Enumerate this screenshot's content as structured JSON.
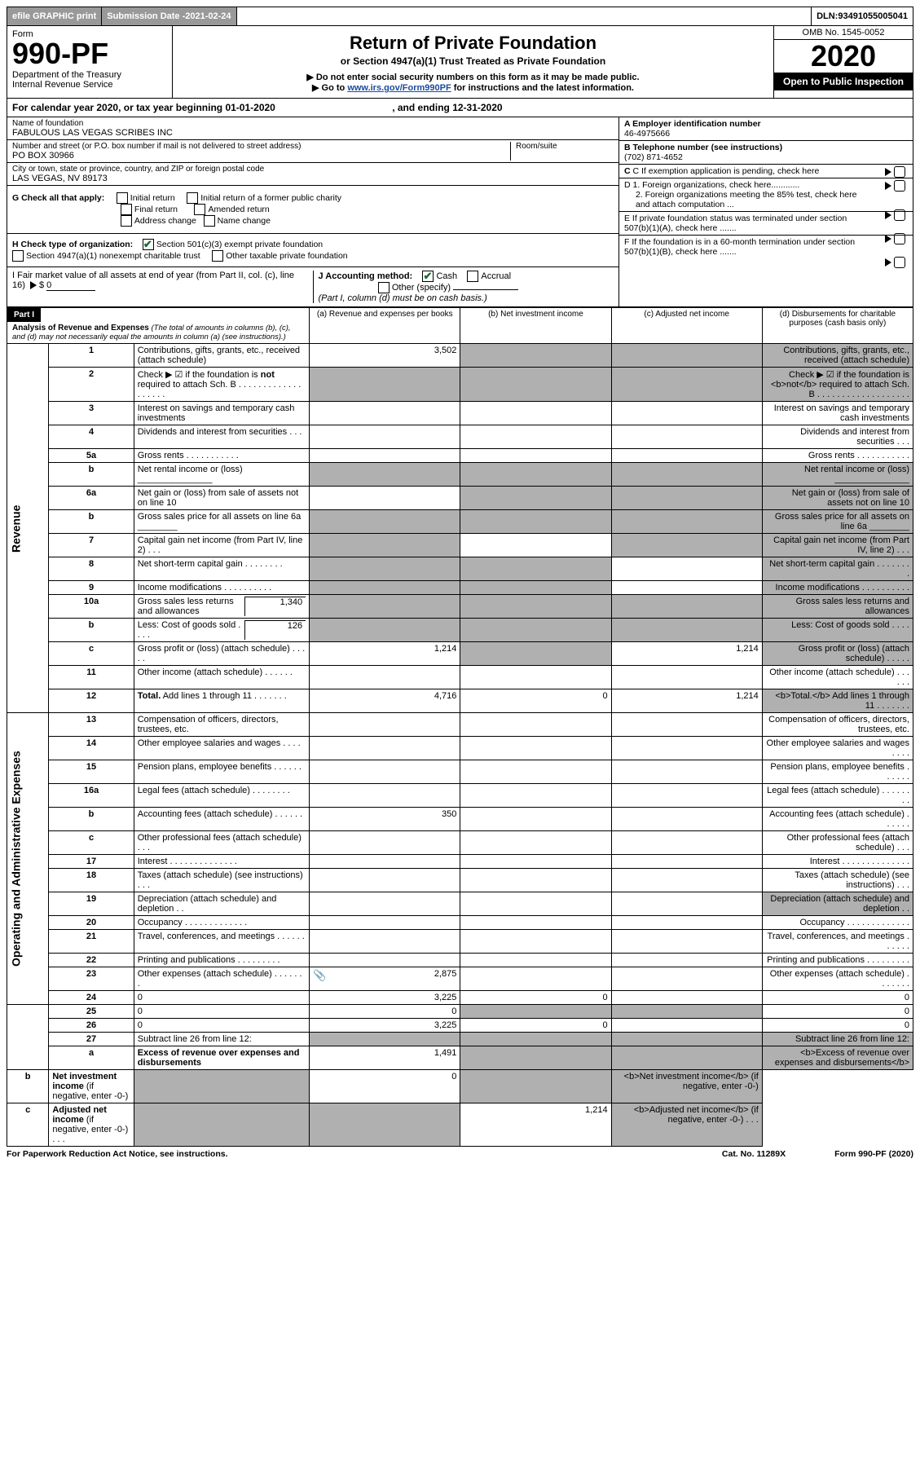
{
  "topbar": {
    "efile": "efile GRAPHIC print",
    "subdate_label": "Submission Date - ",
    "subdate": "2021-02-24",
    "dln_label": "DLN: ",
    "dln": "93491055005041"
  },
  "header": {
    "form_label": "Form",
    "form_no": "990-PF",
    "dept": "Department of the Treasury",
    "irs": "Internal Revenue Service",
    "title": "Return of Private Foundation",
    "subtitle": "or Section 4947(a)(1) Trust Treated as Private Foundation",
    "note1": "▶ Do not enter social security numbers on this form as it may be made public.",
    "note2_pre": "▶ Go to ",
    "note2_link": "www.irs.gov/Form990PF",
    "note2_post": " for instructions and the latest information.",
    "omb": "OMB No. 1545-0052",
    "year": "2020",
    "open": "Open to Public Inspection"
  },
  "calyear": {
    "pre": "For calendar year 2020, or tax year beginning ",
    "begin": "01-01-2020",
    "mid": " , and ending ",
    "end": "12-31-2020"
  },
  "id": {
    "name_lbl": "Name of foundation",
    "name": "FABULOUS LAS VEGAS SCRIBES INC",
    "addr_lbl": "Number and street (or P.O. box number if mail is not delivered to street address)",
    "addr": "PO BOX 30966",
    "room_lbl": "Room/suite",
    "room": "",
    "city_lbl": "City or town, state or province, country, and ZIP or foreign postal code",
    "city": "LAS VEGAS, NV  89173",
    "A_lbl": "A Employer identification number",
    "A": "46-4975666",
    "B_lbl": "B Telephone number (see instructions)",
    "B": "(702) 871-4652",
    "C_lbl": "C If exemption application is pending, check here",
    "D1": "D 1. Foreign organizations, check here............",
    "D2": "2. Foreign organizations meeting the 85% test, check here and attach computation ...",
    "E": "E  If private foundation status was terminated under section 507(b)(1)(A), check here .......",
    "F": "F  If the foundation is in a 60-month termination under section 507(b)(1)(B), check here .......",
    "G_lbl": "G Check all that apply:",
    "G_opts": [
      "Initial return",
      "Initial return of a former public charity",
      "Final return",
      "Amended return",
      "Address change",
      "Name change"
    ],
    "H_lbl": "H Check type of organization:",
    "H_opts_checked": "Section 501(c)(3) exempt private foundation",
    "H_opt2": "Section 4947(a)(1) nonexempt charitable trust",
    "H_opt3": "Other taxable private foundation",
    "I_lbl": "I Fair market value of all assets at end of year (from Part II, col. (c), line 16)",
    "I_val": "0",
    "J_lbl": "J Accounting method:",
    "J_cash": "Cash",
    "J_accr": "Accrual",
    "J_other": "Other (specify)",
    "J_note": "(Part I, column (d) must be on cash basis.)"
  },
  "part1": {
    "label": "Part I",
    "title": "Analysis of Revenue and Expenses",
    "title_note": " (The total of amounts in columns (b), (c), and (d) may not necessarily equal the amounts in column (a) (see instructions).)",
    "col_a": "(a)  Revenue and expenses per books",
    "col_b": "(b)  Net investment income",
    "col_c": "(c)  Adjusted net income",
    "col_d": "(d)  Disbursements for charitable purposes (cash basis only)",
    "revenue_label": "Revenue",
    "expenses_label": "Operating and Administrative Expenses"
  },
  "rows": [
    {
      "n": "1",
      "d": "Contributions, gifts, grants, etc., received (attach schedule)",
      "a": "3,502",
      "b_s": true,
      "c_s": true,
      "d_s": true
    },
    {
      "n": "2",
      "d": "Check ▶ ☑ if the foundation is <b>not</b> required to attach Sch. B   . . . . . . . . . . . . . . . . . . .",
      "a_s": true,
      "b_s": true,
      "c_s": true,
      "d_s": true
    },
    {
      "n": "3",
      "d": "Interest on savings and temporary cash investments"
    },
    {
      "n": "4",
      "d": "Dividends and interest from securities  . . ."
    },
    {
      "n": "5a",
      "d": "Gross rents  . . . . . . . . . . ."
    },
    {
      "n": "b",
      "d": "Net rental income or (loss)  _______________",
      "a_s": true,
      "b_s": true,
      "c_s": true,
      "d_s": true
    },
    {
      "n": "6a",
      "d": "Net gain or (loss) from sale of assets not on line 10",
      "b_s": true,
      "c_s": true,
      "d_s": true
    },
    {
      "n": "b",
      "d": "Gross sales price for all assets on line 6a ________",
      "a_s": true,
      "b_s": true,
      "c_s": true,
      "d_s": true
    },
    {
      "n": "7",
      "d": "Capital gain net income (from Part IV, line 2)  . . .",
      "a_s": true,
      "c_s": true,
      "d_s": true
    },
    {
      "n": "8",
      "d": "Net short-term capital gain  . . . . . . . .",
      "a_s": true,
      "b_s": true,
      "d_s": true
    },
    {
      "n": "9",
      "d": "Income modifications  . . . . . . . . . .",
      "a_s": true,
      "b_s": true,
      "d_s": true
    },
    {
      "n": "10a",
      "d": "Gross sales less returns and allowances",
      "sub": "1,340",
      "a_s": true,
      "b_s": true,
      "c_s": true,
      "d_s": true
    },
    {
      "n": "b",
      "d": "Less: Cost of goods sold  . . . .",
      "sub": "126",
      "a_s": true,
      "b_s": true,
      "c_s": true,
      "d_s": true
    },
    {
      "n": "c",
      "d": "Gross profit or (loss) (attach schedule)  . . . . .",
      "a": "1,214",
      "b_s": true,
      "c": "1,214",
      "d_s": true
    },
    {
      "n": "11",
      "d": "Other income (attach schedule)  . . . . . ."
    },
    {
      "n": "12",
      "d": "<b>Total.</b> Add lines 1 through 11  . . . . . . .",
      "a": "4,716",
      "b": "0",
      "c": "1,214",
      "d_s": true
    },
    {
      "n": "13",
      "d": "Compensation of officers, directors, trustees, etc."
    },
    {
      "n": "14",
      "d": "Other employee salaries and wages  . . . ."
    },
    {
      "n": "15",
      "d": "Pension plans, employee benefits  . . . . . ."
    },
    {
      "n": "16a",
      "d": "Legal fees (attach schedule)  . . . . . . . ."
    },
    {
      "n": "b",
      "d": "Accounting fees (attach schedule)  . . . . . .",
      "a": "350"
    },
    {
      "n": "c",
      "d": "Other professional fees (attach schedule)  . . ."
    },
    {
      "n": "17",
      "d": "Interest  . . . . . . . . . . . . . ."
    },
    {
      "n": "18",
      "d": "Taxes (attach schedule) (see instructions)  . . ."
    },
    {
      "n": "19",
      "d": "Depreciation (attach schedule) and depletion  . .",
      "d_s": true
    },
    {
      "n": "20",
      "d": "Occupancy  . . . . . . . . . . . . ."
    },
    {
      "n": "21",
      "d": "Travel, conferences, and meetings  . . . . . ."
    },
    {
      "n": "22",
      "d": "Printing and publications  . . . . . . . . ."
    },
    {
      "n": "23",
      "d": "Other expenses (attach schedule)  . . . . . . .",
      "a": "2,875",
      "a_icon": true
    },
    {
      "n": "24",
      "d": "0",
      "a": "3,225",
      "b": "0",
      "c": ""
    },
    {
      "n": "25",
      "d": "0",
      "a": "0",
      "b_s": true,
      "c_s": true
    },
    {
      "n": "26",
      "d": "0",
      "a": "3,225",
      "b": "0",
      "c": ""
    },
    {
      "n": "27",
      "d": "Subtract line 26 from line 12:",
      "a_s": true,
      "b_s": true,
      "c_s": true,
      "d_s": true
    },
    {
      "n": "a",
      "d": "<b>Excess of revenue over expenses and disbursements</b>",
      "a": "1,491",
      "b_s": true,
      "c_s": true,
      "d_s": true
    },
    {
      "n": "b",
      "d": "<b>Net investment income</b> (if negative, enter -0-)",
      "a_s": true,
      "b": "0",
      "c_s": true,
      "d_s": true
    },
    {
      "n": "c",
      "d": "<b>Adjusted net income</b> (if negative, enter -0-)  . . .",
      "a_s": true,
      "b_s": true,
      "c": "1,214",
      "d_s": true
    }
  ],
  "footer": {
    "left": "For Paperwork Reduction Act Notice, see instructions.",
    "mid": "Cat. No. 11289X",
    "right": "Form 990-PF (2020)"
  },
  "colors": {
    "shade": "#b0b0b0",
    "link": "#1a4ba0",
    "check": "#1a6b2e"
  }
}
